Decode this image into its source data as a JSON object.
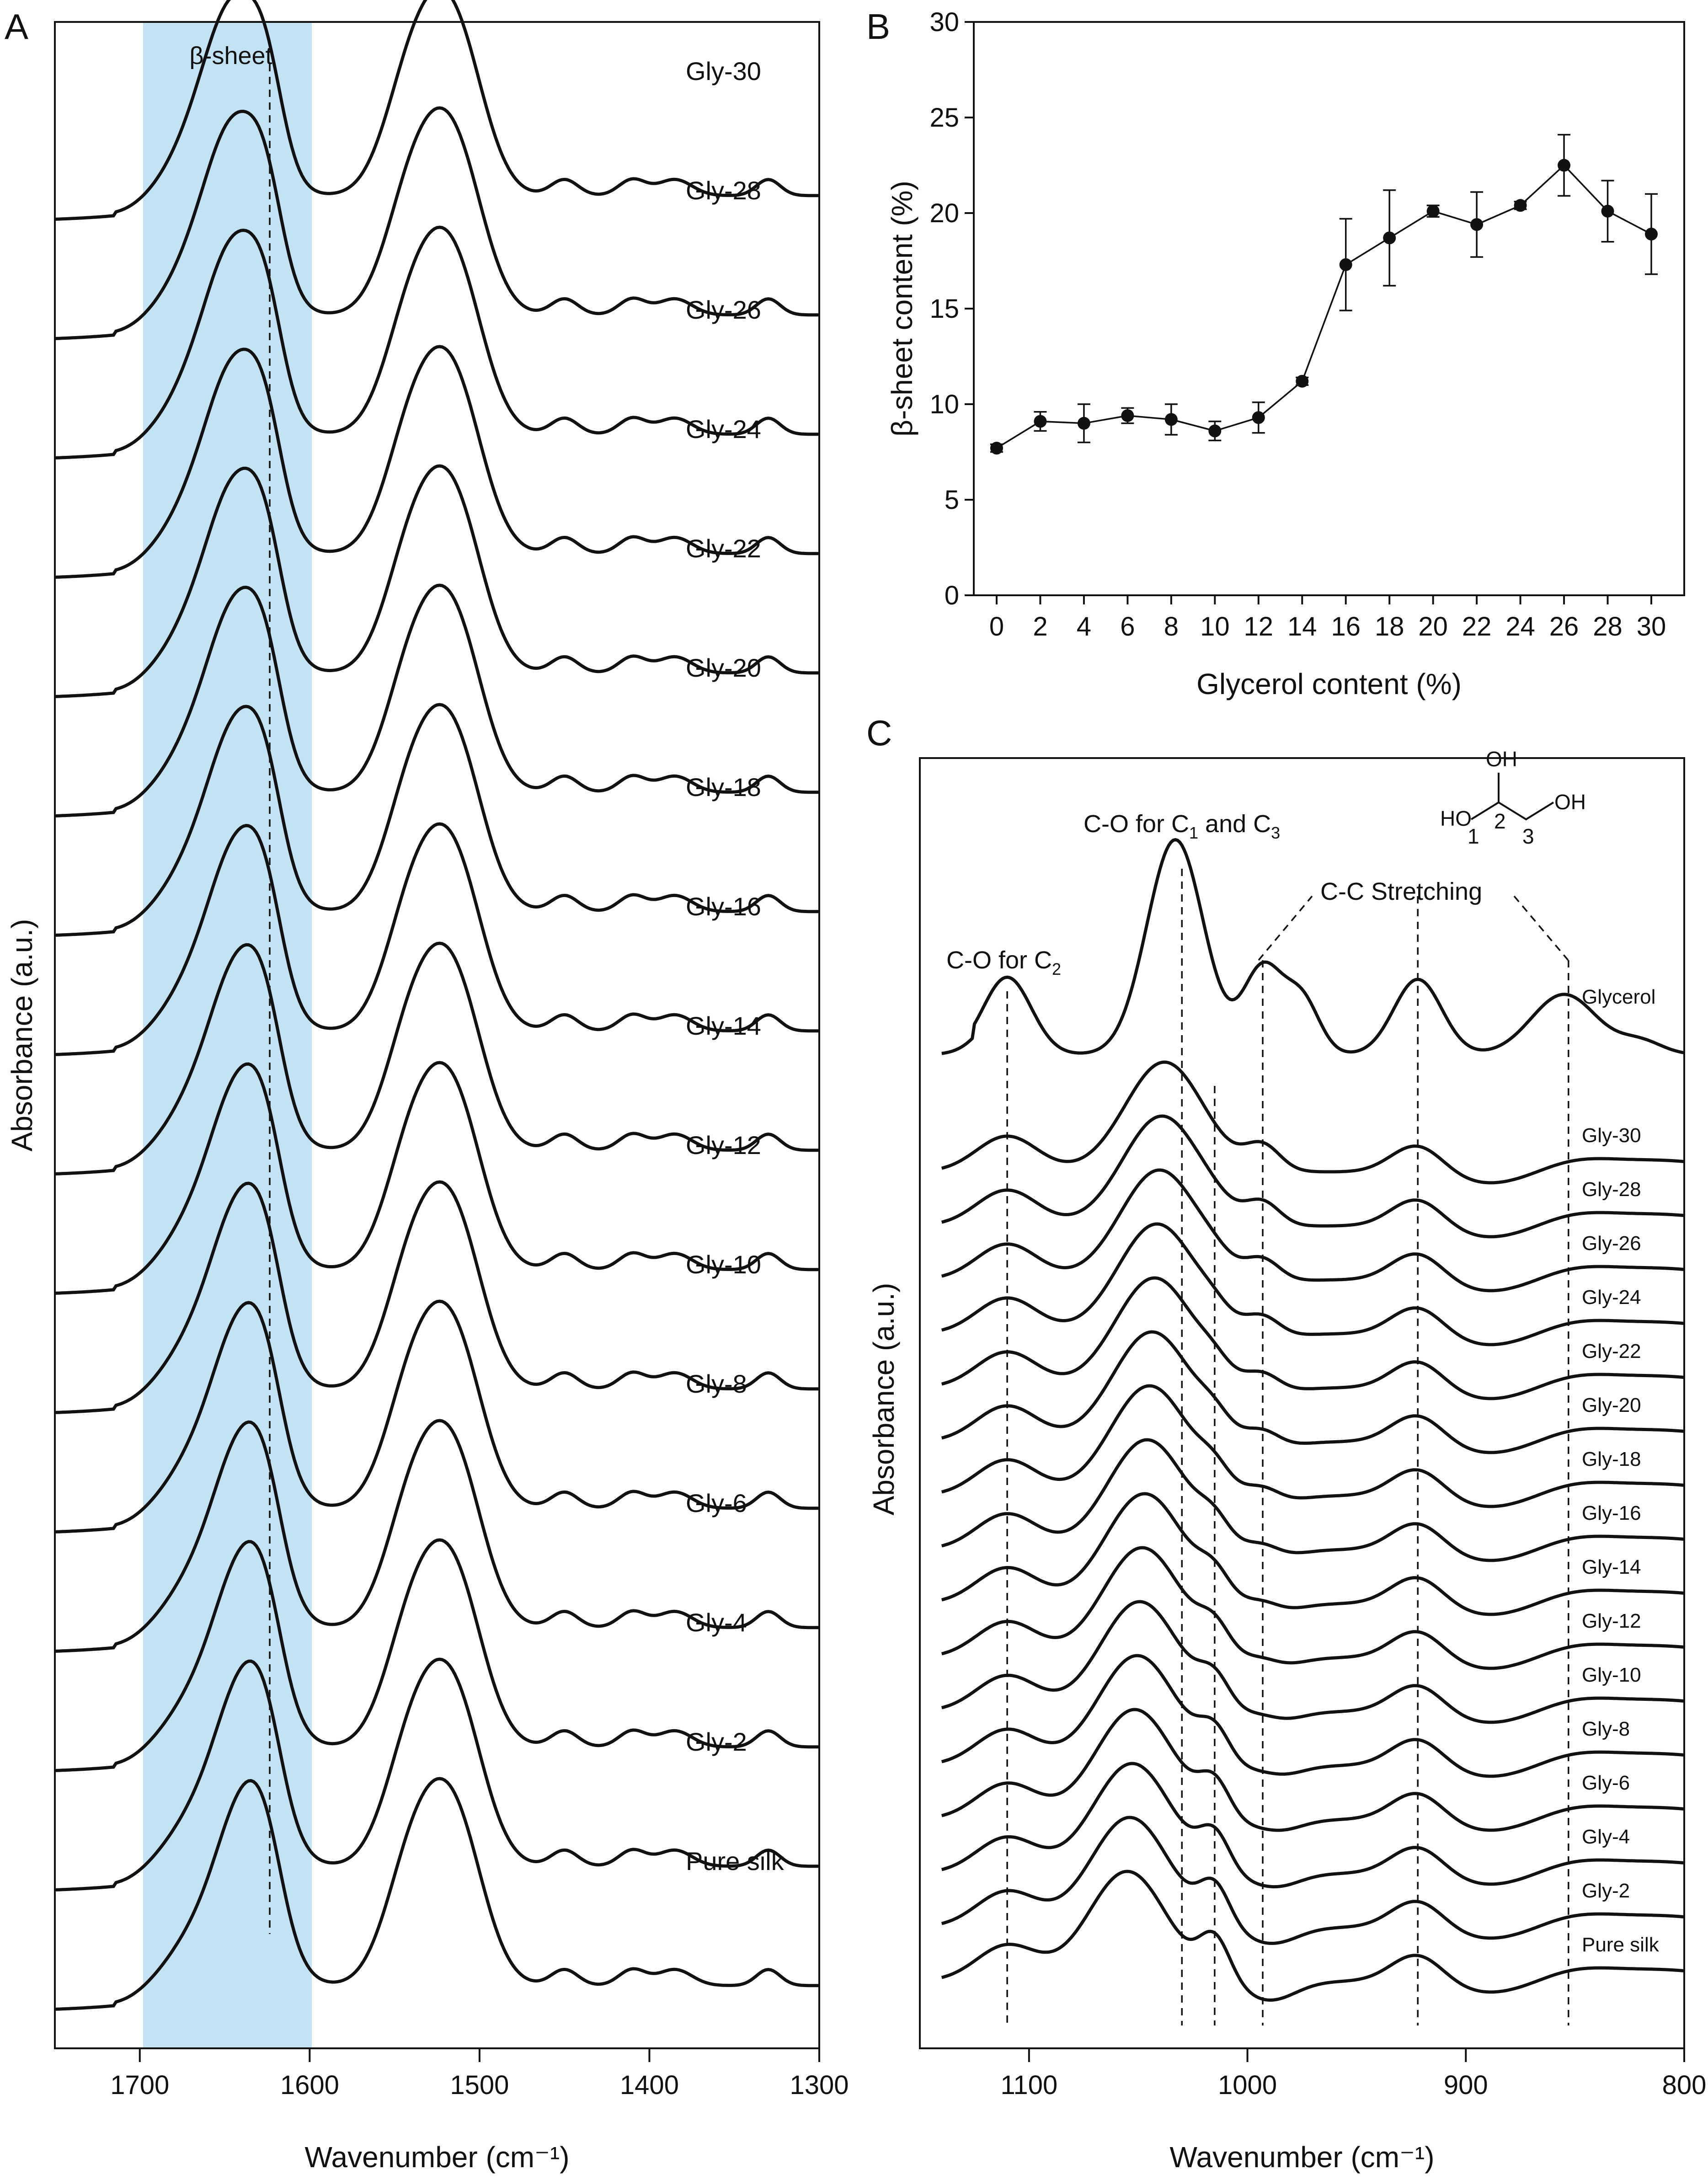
{
  "panel_letters": {
    "a": "A",
    "b": "B",
    "c": "C"
  },
  "colors": {
    "beta_band": "#c3e3f5",
    "ink": "#111111"
  },
  "panelA": {
    "xlabel": "Wavenumber (cm⁻¹)",
    "ylabel": "Absorbance (a.u.)",
    "band_label": "β-sheet"
  },
  "panelC": {
    "xlabel": "Wavenumber (cm⁻¹)",
    "ylabel": "Absorbance (a.u.)",
    "annotations": {
      "c2_prefix": "C-O for C",
      "c2_sub": "2",
      "c13_prefix": "C-O for C",
      "c13_sub1": "1",
      "c13_mid": " and C",
      "c13_sub2": "3",
      "cc": "C-C Stretching"
    },
    "molecule": {
      "oh_left": "HO",
      "oh_top": "OH",
      "oh_right": "OH",
      "c1": "1",
      "c2": "2",
      "c3": "3"
    }
  },
  "chart_data": [
    {
      "panel": "A",
      "type": "line",
      "title": "",
      "xlabel": "Wavenumber (cm⁻¹)",
      "ylabel": "Absorbance (a.u.)",
      "xlim": [
        1750,
        1300
      ],
      "xticks": [
        1700,
        1600,
        1500,
        1400,
        1300
      ],
      "shaded_band": {
        "label": "β-sheet",
        "x": [
          1700,
          1600
        ]
      },
      "reference_line_x": 1625,
      "series": [
        "Gly-30",
        "Gly-28",
        "Gly-26",
        "Gly-24",
        "Gly-22",
        "Gly-20",
        "Gly-18",
        "Gly-16",
        "Gly-14",
        "Gly-12",
        "Gly-10",
        "Gly-8",
        "Gly-6",
        "Gly-4",
        "Gly-2",
        "Pure silk"
      ]
    },
    {
      "panel": "B",
      "type": "line",
      "title": "",
      "xlabel": "Glycerol content (%)",
      "ylabel": "β-sheet content (%)",
      "ylim": [
        0,
        30
      ],
      "yticks": [
        0,
        5,
        10,
        15,
        20,
        25,
        30
      ],
      "x": [
        0,
        2,
        4,
        6,
        8,
        10,
        12,
        14,
        16,
        18,
        20,
        22,
        24,
        26,
        28,
        30
      ],
      "values": [
        7.7,
        9.1,
        9.0,
        9.4,
        9.2,
        8.6,
        9.3,
        11.2,
        17.3,
        18.7,
        20.1,
        19.4,
        20.4,
        22.5,
        20.1,
        18.9
      ],
      "errors": [
        0.2,
        0.5,
        1.0,
        0.4,
        0.8,
        0.5,
        0.8,
        0.2,
        2.4,
        2.5,
        0.3,
        1.7,
        0.2,
        1.6,
        1.6,
        2.1
      ]
    },
    {
      "panel": "C",
      "type": "line",
      "title": "",
      "xlabel": "Wavenumber (cm⁻¹)",
      "ylabel": "Absorbance (a.u.)",
      "xlim": [
        1150,
        800
      ],
      "xticks": [
        1100,
        1000,
        900,
        800
      ],
      "reference_lines_x": [
        1110,
        1030,
        1015,
        993,
        922,
        853
      ],
      "series": [
        "Glycerol",
        "Gly-30",
        "Gly-28",
        "Gly-26",
        "Gly-24",
        "Gly-22",
        "Gly-20",
        "Gly-18",
        "Gly-16",
        "Gly-14",
        "Gly-12",
        "Gly-10",
        "Gly-8",
        "Gly-6",
        "Gly-4",
        "Gly-2",
        "Pure silk"
      ]
    }
  ]
}
